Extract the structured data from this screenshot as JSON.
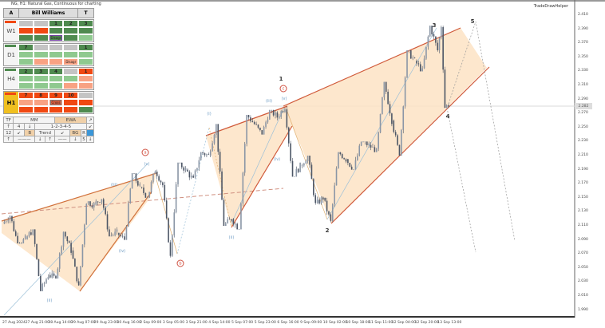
{
  "window": {
    "title": "NG, H1: Natural Gas, Continuous for charting",
    "helper_label": "TradeDrawHelper"
  },
  "colors": {
    "dark_green": "#4f8a4f",
    "light_green": "#8fc98f",
    "gray": "#c4c4c4",
    "red": "#f04812",
    "salmon": "#f8a283",
    "yellow": "#f0c020",
    "tan": "#f0d0a8",
    "blue": "#3a96d8",
    "channel": "#d05a3a",
    "wedge_fill": "#fde3c4",
    "wave_minor": "#6f9cc4",
    "candle": "#4c5666"
  },
  "panel": {
    "header": {
      "a_label": "A",
      "title": "Bill Williams",
      "t_label": "T"
    },
    "blocks": [
      {
        "label": "W1",
        "bar": "red",
        "rows": [
          [
            {
              "c": "gray"
            },
            {
              "c": "gray"
            },
            {
              "c": "dark_green",
              "t": "1"
            },
            {
              "c": "dark_green",
              "t": "2"
            },
            {
              "c": "dark_green",
              "t": "3"
            }
          ],
          [
            {
              "c": "red"
            },
            {
              "c": "red"
            },
            {
              "c": "dark_green"
            },
            {
              "c": "dark_green"
            },
            {
              "c": "dark_green"
            }
          ],
          [
            {
              "c": "dark_green"
            },
            {
              "c": "dark_green"
            },
            {
              "c": "dark_green",
              "tag": "Disagr"
            },
            {
              "c": "dark_green"
            },
            {
              "c": "light_green"
            }
          ]
        ]
      },
      {
        "label": "D1",
        "bar": "dark_green",
        "rows": [
          [
            {
              "c": "dark_green",
              "t": "7"
            },
            {
              "c": "gray"
            },
            {
              "c": "gray"
            },
            {
              "c": "gray"
            },
            {
              "c": "dark_green",
              "t": "1"
            }
          ],
          [
            {
              "c": "light_green"
            },
            {
              "c": "light_green"
            },
            {
              "c": "light_green"
            },
            {
              "c": "light_green"
            },
            {
              "c": "light_green"
            }
          ],
          [
            {
              "c": "light_green"
            },
            {
              "c": "salmon"
            },
            {
              "c": "salmon"
            },
            {
              "c": "salmon",
              "tag": "Disagr"
            },
            {
              "c": "light_green"
            }
          ]
        ]
      },
      {
        "label": "H4",
        "bar": "dark_green",
        "rows": [
          [
            {
              "c": "dark_green",
              "t": "2"
            },
            {
              "c": "dark_green",
              "t": "3"
            },
            {
              "c": "dark_green",
              "t": "4"
            },
            {
              "c": "gray"
            },
            {
              "c": "red",
              "t": "1"
            }
          ],
          [
            {
              "c": "light_green"
            },
            {
              "c": "light_green"
            },
            {
              "c": "light_green"
            },
            {
              "c": "light_green"
            },
            {
              "c": "salmon"
            }
          ],
          [
            {
              "c": "light_green"
            },
            {
              "c": "light_green"
            },
            {
              "c": "light_green"
            },
            {
              "c": "salmon"
            },
            {
              "c": "salmon"
            }
          ]
        ]
      },
      {
        "label": "H1",
        "bar": "red",
        "active": true,
        "rows": [
          [
            {
              "c": "red",
              "t": "7"
            },
            {
              "c": "red",
              "t": "8"
            },
            {
              "c": "red",
              "t": "9"
            },
            {
              "c": "red",
              "t": "10"
            },
            {
              "c": "gray"
            }
          ],
          [
            {
              "c": "salmon"
            },
            {
              "c": "salmon"
            },
            {
              "c": "salmon",
              "tag": "Cross"
            },
            {
              "c": "red"
            },
            {
              "c": "red"
            }
          ],
          [
            {
              "c": "red"
            },
            {
              "c": "red"
            },
            {
              "c": "red"
            },
            {
              "c": "red"
            },
            {
              "c": "dark_green"
            }
          ]
        ]
      }
    ],
    "controls": {
      "tf": "TF",
      "mm": "MM",
      "ewa": "EWA",
      "expand": "↗",
      "up": "↑",
      "down": "↓",
      "wave_count": "4",
      "wave_pattern": "1-2-3-4-5",
      "collapse": "↙",
      "period": "12",
      "b": "B",
      "trend": "Trend",
      "bg": "BG",
      "r": "R",
      "line_long": "———",
      "line_short": "——",
      "five": "5"
    }
  },
  "chart_data": {
    "type": "candlestick",
    "title": "NG, H1: Natural Gas, Continuous for charting",
    "y_ticks": [
      "2.410",
      "2.390",
      "2.370",
      "2.350",
      "2.330",
      "2.310",
      "2.290",
      "2.270",
      "2.250",
      "2.230",
      "2.210",
      "2.190",
      "2.170",
      "2.150",
      "2.130",
      "2.110",
      "2.090",
      "2.070",
      "2.050",
      "2.030",
      "2.010",
      "1.990"
    ],
    "ylim": [
      1.99,
      2.41
    ],
    "current_price": "2.282",
    "x_ticks": [
      "27 Aug 2024",
      "27 Aug 21:00",
      "28 Aug 14:00",
      "29 Aug 07:00",
      "29 Aug 23:00",
      "30 Aug 16:00",
      "2 Sep 09:00",
      "3 Sep 05:00",
      "3 Sep 21:00",
      "4 Sep 14:00",
      "5 Sep 07:00",
      "5 Sep 23:00",
      "6 Sep 16:00",
      "9 Sep 09:00",
      "10 Sep 02:00",
      "10 Sep 18:00",
      "11 Sep 11:00",
      "12 Sep 04:00",
      "12 Sep 20:00",
      "13 Sep 13:00"
    ],
    "ohlc_by_tick_interval": [
      [
        2.113,
        2.125,
        2.085,
        2.091
      ],
      [
        2.091,
        2.105,
        2.017,
        2.04
      ],
      [
        2.04,
        2.102,
        2.035,
        2.075
      ],
      [
        2.075,
        2.145,
        2.022,
        2.14
      ],
      [
        2.14,
        2.15,
        2.095,
        2.1
      ],
      [
        2.1,
        2.185,
        2.09,
        2.165
      ],
      [
        2.165,
        2.19,
        2.15,
        2.168
      ],
      [
        2.168,
        2.2,
        2.065,
        2.19
      ],
      [
        2.19,
        2.215,
        2.175,
        2.21
      ],
      [
        2.21,
        2.255,
        2.11,
        2.12
      ],
      [
        2.12,
        2.268,
        2.105,
        2.255
      ],
      [
        2.255,
        2.275,
        2.24,
        2.265
      ],
      [
        2.265,
        2.28,
        2.18,
        2.195
      ],
      [
        2.195,
        2.21,
        2.14,
        2.15
      ],
      [
        2.15,
        2.215,
        2.115,
        2.205
      ],
      [
        2.205,
        2.23,
        2.19,
        2.225
      ],
      [
        2.225,
        2.315,
        2.215,
        2.26
      ],
      [
        2.26,
        2.36,
        2.21,
        2.345
      ],
      [
        2.345,
        2.395,
        2.33,
        2.36
      ],
      [
        2.36,
        2.395,
        2.278,
        2.283
      ]
    ],
    "wave_labels": [
      "(ii)",
      "(iii)",
      "(iv)",
      "(v)",
      "a",
      "b",
      "(i)",
      "(ii)",
      "(iii)",
      "(iv)",
      "(v)",
      "c",
      "1",
      "2",
      "3",
      "4",
      "5"
    ]
  }
}
